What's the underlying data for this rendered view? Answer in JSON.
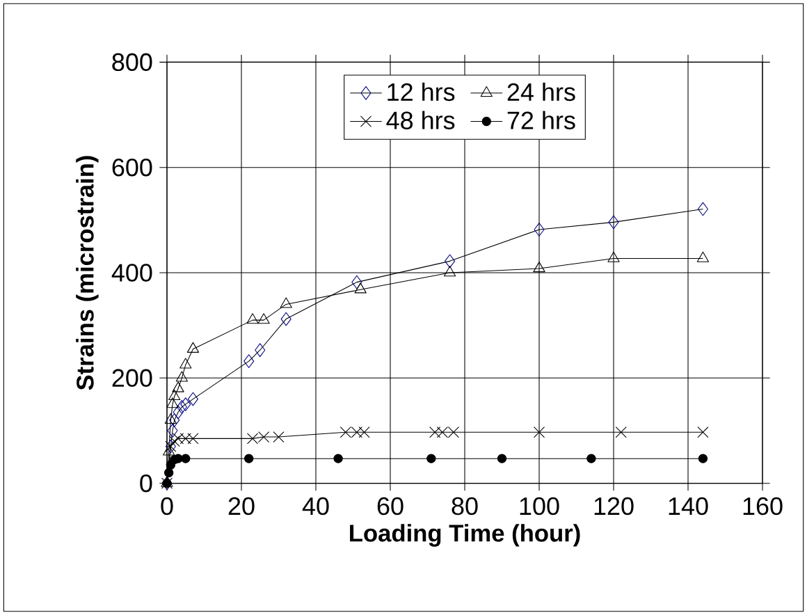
{
  "chart_data": {
    "type": "line",
    "xlabel": "Loading Time (hour)",
    "ylabel": "Strains (microstrain)",
    "xlim": [
      0,
      160
    ],
    "xticks": [
      0,
      20,
      40,
      60,
      80,
      100,
      120,
      140,
      160
    ],
    "ylim": [
      0,
      800
    ],
    "yticks": [
      0,
      200,
      400,
      600,
      800
    ],
    "grid": true,
    "legend": "top",
    "line_style": "solid",
    "series": [
      {
        "name": "12 hrs",
        "color": "#000080",
        "marker": "diamond",
        "x": [
          0,
          0.25,
          0.5,
          1,
          1.5,
          2,
          3,
          4,
          5,
          7,
          22,
          25,
          32,
          51,
          76,
          100,
          120,
          144
        ],
        "values": [
          0,
          null,
          null,
          70,
          100,
          120,
          135,
          145,
          150,
          160,
          232,
          253,
          312,
          382,
          422,
          482,
          496,
          521
        ]
      },
      {
        "name": "24 hrs",
        "color": "#000000",
        "marker": "triangle",
        "x": [
          0,
          0.5,
          1,
          1.5,
          2,
          3,
          4,
          5,
          7,
          23,
          26,
          32,
          52,
          76,
          100,
          120,
          144
        ],
        "values": [
          0,
          60,
          120,
          150,
          165,
          180,
          200,
          225,
          255,
          310,
          310,
          340,
          368,
          400,
          408,
          427,
          427
        ]
      },
      {
        "name": "48 hrs",
        "color": "#000000",
        "marker": "cross",
        "x": [
          0,
          0.5,
          1,
          2,
          3,
          5,
          7,
          23,
          26,
          30,
          48,
          51,
          53,
          72,
          74,
          77,
          100,
          122,
          144
        ],
        "values": [
          0,
          null,
          70,
          80,
          85,
          85,
          85,
          85,
          88,
          88,
          97,
          97,
          97,
          97,
          97,
          97,
          97,
          97,
          97
        ]
      },
      {
        "name": "72 hrs",
        "color": "#000000",
        "marker": "circle",
        "x": [
          0,
          0.5,
          1,
          2,
          3,
          5,
          22,
          46,
          71,
          90,
          114,
          144
        ],
        "values": [
          0,
          20,
          35,
          45,
          47,
          47,
          47,
          47,
          47,
          47,
          47,
          47
        ]
      }
    ]
  }
}
